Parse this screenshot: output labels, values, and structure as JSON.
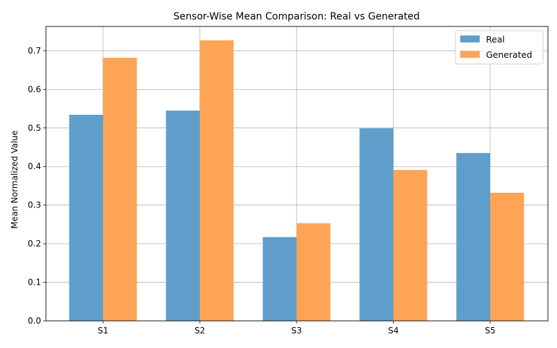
{
  "chart_data": {
    "type": "bar",
    "title": "Sensor-Wise Mean Comparison: Real vs Generated",
    "xlabel": "",
    "ylabel": "Mean Normalized Value",
    "categories": [
      "S1",
      "S2",
      "S3",
      "S4",
      "S5"
    ],
    "series": [
      {
        "name": "Real",
        "color": "#5f9ecb",
        "values": [
          0.534,
          0.545,
          0.217,
          0.499,
          0.435
        ]
      },
      {
        "name": "Generated",
        "color": "#fea454",
        "values": [
          0.682,
          0.727,
          0.253,
          0.391,
          0.332
        ]
      }
    ],
    "ylim": [
      0,
      0.763
    ],
    "yticks": [
      "0.0",
      "0.1",
      "0.2",
      "0.3",
      "0.4",
      "0.5",
      "0.6",
      "0.7"
    ],
    "grid": true,
    "legend_position": "top-right"
  }
}
